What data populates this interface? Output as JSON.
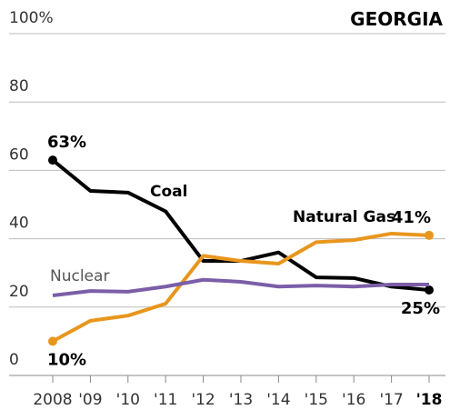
{
  "chart_data": {
    "type": "line",
    "title": "GEORGIA",
    "categories": [
      "2008",
      "'09",
      "'10",
      "'11",
      "'12",
      "'13",
      "'14",
      "'15",
      "'16",
      "'17",
      "'18"
    ],
    "series": [
      {
        "name": "Coal",
        "color": "#000000",
        "values": [
          63,
          54,
          53.5,
          48,
          33.5,
          33.5,
          36,
          28.7,
          28.5,
          26,
          25
        ],
        "value_labels": [
          "63%",
          null,
          null,
          null,
          null,
          null,
          null,
          null,
          null,
          null,
          "25%"
        ]
      },
      {
        "name": "Natural Gas",
        "color": "#e8961e",
        "values": [
          10,
          16,
          17.5,
          21,
          35,
          33.5,
          32.7,
          39,
          39.6,
          41.5,
          41
        ],
        "value_labels": [
          "10%",
          null,
          null,
          null,
          null,
          null,
          null,
          null,
          null,
          null,
          "41%"
        ]
      },
      {
        "name": "Nuclear",
        "color": "#7b5ea7",
        "values": [
          23.4,
          24.7,
          24.5,
          26,
          28,
          27.4,
          26,
          26.3,
          26,
          26.6,
          26.6
        ]
      }
    ],
    "ylim": [
      0,
      100
    ],
    "yticks": [
      0,
      20,
      40,
      60,
      80,
      {
        "value": 100,
        "label": "100%"
      }
    ],
    "grid": true
  }
}
